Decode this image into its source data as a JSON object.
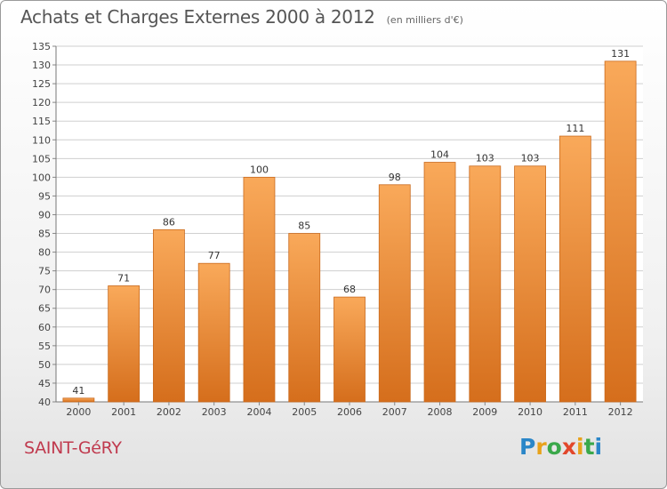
{
  "header": {
    "title": "Achats et Charges Externes 2000 à 2012",
    "subtitle": "(en milliers d'€)"
  },
  "footer": {
    "city": "SAINT-GéRY",
    "logo": "Proxiti"
  },
  "colors": {
    "bar_top": "#f9a95a",
    "bar_bottom": "#d56e1c",
    "grid": "#cfcfcf",
    "city": "#c03a4e"
  },
  "chart_data": {
    "type": "bar",
    "title": "Achats et Charges Externes 2000 à 2012",
    "subtitle": "(en milliers d'€)",
    "xlabel": "",
    "ylabel": "",
    "categories": [
      "2000",
      "2001",
      "2002",
      "2003",
      "2004",
      "2005",
      "2006",
      "2007",
      "2008",
      "2009",
      "2010",
      "2011",
      "2012"
    ],
    "values": [
      41,
      71,
      86,
      77,
      100,
      85,
      68,
      98,
      104,
      103,
      103,
      111,
      131
    ],
    "data_labels": [
      "41",
      "71",
      "86",
      "77",
      "100",
      "85",
      "68",
      "98",
      "104",
      "103",
      "103",
      "111",
      "131"
    ],
    "ylim": [
      40,
      135
    ],
    "ytick_step": 5,
    "grid": true,
    "legend": "none"
  }
}
